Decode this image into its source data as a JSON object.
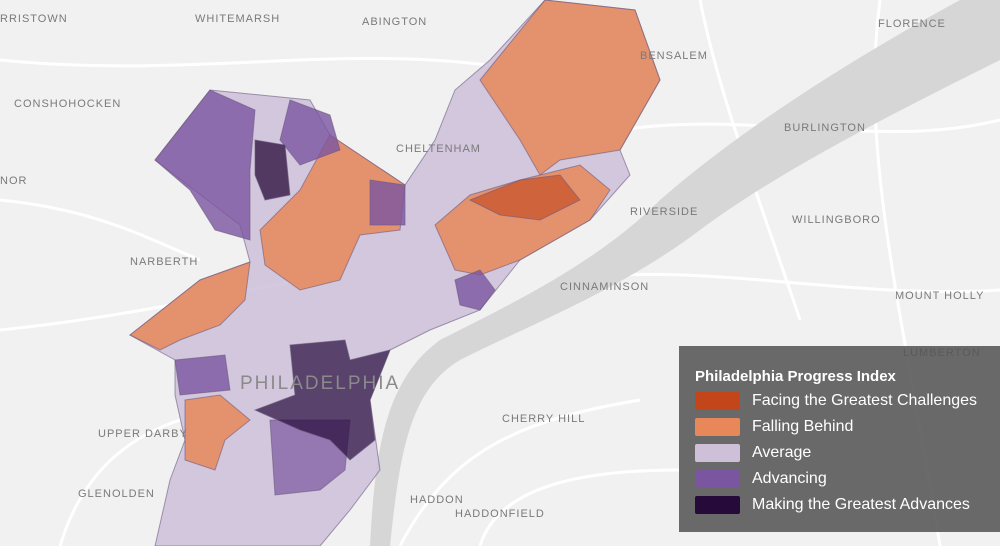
{
  "labels": [
    "RRISTOWN",
    "WHITEMARSH",
    "ABINGTON",
    "FLORENCE",
    "BENSALEM",
    "CONSHOHOCKEN",
    "BURLINGTON",
    "CHELTENHAM",
    "NOR",
    "RIVERSIDE",
    "WILLINGBORO",
    "NARBERTH",
    "CINNAMINSON",
    "MOUNT HOLLY",
    "LUMBERTON",
    "PHILADELPHIA",
    "UPPER DARBY",
    "CHERRY HILL",
    "GLENOLDEN",
    "HADDON",
    "HADDONFIELD"
  ],
  "legend": {
    "title": "Philadelphia Progress Index",
    "items": [
      {
        "label": "Facing the Greatest Challenges",
        "color": "#c2461a"
      },
      {
        "label": "Falling Behind",
        "color": "#e8875a"
      },
      {
        "label": "Average",
        "color": "#cdc0d8"
      },
      {
        "label": "Advancing",
        "color": "#7a55a0"
      },
      {
        "label": "Making the Greatest Advances",
        "color": "#250a3a"
      }
    ]
  }
}
